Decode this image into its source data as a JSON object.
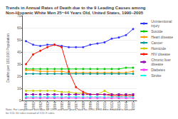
{
  "chart_data": {
    "type": "line",
    "title": "Trends in Annual Rates of Death due to the 9 Leading Causes among\nNon-Hispanic White Men 25−44 Years Old, United States, 1990–2005",
    "annotations": [
      "Note: For comparison with data for 1999 and later years, data for 1990-1998 were modified to account\nfor ICD-10 rules instead of ICD-9 rules."
    ],
    "y_label": "Deaths per 100,000 Population",
    "x": [
      1990,
      1991,
      1992,
      1993,
      1994,
      1995,
      1996,
      1997,
      1998,
      1999,
      2000,
      2001,
      2002,
      2003,
      2004,
      2005
    ],
    "xlim": [
      1989.5,
      2005.5
    ],
    "xticks": [
      1990,
      1991,
      1992,
      1993,
      1994,
      1995,
      1996,
      1997,
      1998,
      1999,
      2000,
      2001,
      2002,
      2003,
      2004,
      2005
    ],
    "ylim": [
      0,
      70
    ],
    "yticks": [
      0,
      10,
      20,
      30,
      40,
      50,
      60,
      70
    ],
    "grid": true,
    "legend": "right",
    "series": [
      {
        "name": "Unintentional\ninjury",
        "color": "#3333ff",
        "marker": "circle",
        "line_style": "solid",
        "values": [
          49,
          46,
          45,
          46,
          46,
          45,
          44,
          44,
          44,
          46,
          47,
          48,
          51,
          52,
          54,
          59
        ]
      },
      {
        "name": "Suicide",
        "color": "#00cc00",
        "marker": "circle",
        "line_style": "solid",
        "values": [
          26,
          26,
          26,
          26,
          26,
          26,
          26,
          26,
          26,
          26,
          26,
          26,
          26,
          26,
          27,
          27
        ]
      },
      {
        "name": "Heart disease",
        "color": "#ff9900",
        "marker": "circle",
        "line_style": "solid",
        "values": [
          25,
          25,
          24,
          24,
          24,
          24,
          23,
          23,
          23,
          23,
          23,
          23,
          23,
          23,
          23,
          24
        ]
      },
      {
        "name": "Cancer",
        "color": "#009999",
        "marker": "circle",
        "line_style": "solid",
        "values": [
          22,
          22,
          22,
          22,
          22,
          22,
          22,
          22,
          22,
          22,
          22,
          22,
          22,
          22,
          22,
          22
        ]
      },
      {
        "name": "Homicide",
        "color": "#cccc00",
        "marker": "circle",
        "line_style": "solid",
        "values": [
          8,
          8,
          8,
          8,
          8,
          7,
          7,
          6,
          6,
          5,
          5,
          8,
          5,
          5,
          5,
          5
        ]
      },
      {
        "name": "HIV disease",
        "color": "#ff1100",
        "marker": "circle",
        "line_style": "solid",
        "values": [
          30,
          38,
          41,
          44,
          46,
          44,
          24,
          11,
          7,
          5,
          5,
          5,
          4,
          4,
          4,
          4
        ]
      },
      {
        "name": "Chronic liver\ndisease",
        "color": "#9900bb",
        "marker": "square",
        "line_style": "dashed",
        "values": [
          5,
          5,
          5,
          5,
          5,
          5,
          5,
          5,
          5,
          5,
          5,
          5,
          5,
          5,
          5,
          5
        ]
      },
      {
        "name": "Diabetes",
        "color": "#ff44ff",
        "marker": "square",
        "line_style": "solid",
        "values": [
          2,
          2,
          2,
          2,
          2,
          2,
          2,
          2,
          2,
          2,
          2,
          2,
          2,
          2,
          2,
          2
        ]
      },
      {
        "name": "Stroke",
        "color": "#00ffee",
        "marker": "diamond",
        "line_style": "dashed",
        "values": [
          3,
          3,
          3,
          3,
          3,
          3,
          3,
          3,
          3,
          3,
          3,
          3,
          3,
          3,
          3,
          3
        ]
      }
    ]
  }
}
